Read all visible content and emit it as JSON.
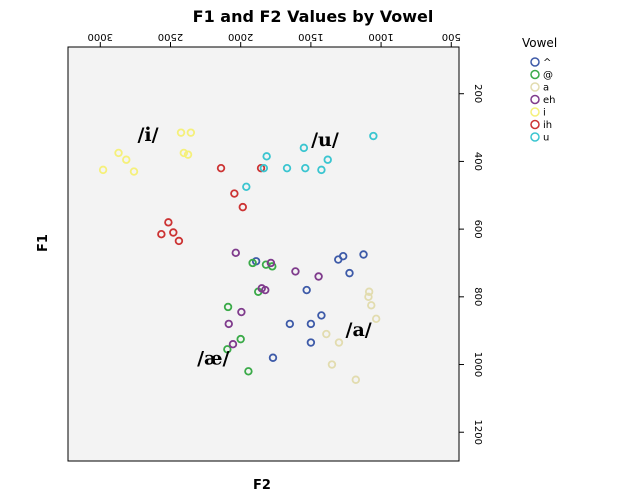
{
  "chart_data": {
    "type": "scatter",
    "title": "F1 and F2 Values by Vowel",
    "xlabel": "F2",
    "ylabel": "F1",
    "x_reversed": true,
    "y_reversed": true,
    "xlim": [
      3230,
      445
    ],
    "ylim": [
      62,
      1285
    ],
    "x_ticks": [
      3000,
      2500,
      2000,
      1500,
      1000,
      500
    ],
    "x_tick_labels": [
      "3000",
      "2500",
      "2000",
      "1500",
      "1000",
      "500"
    ],
    "y_ticks": [
      200,
      400,
      600,
      800,
      1000,
      1200
    ],
    "y_tick_labels": [
      "200",
      "400",
      "600",
      "800",
      "1000",
      "1200"
    ],
    "tick_labels_rotated": true,
    "legend": {
      "title": "Vowel",
      "position": "right"
    },
    "grid": false,
    "series": [
      {
        "name": "^",
        "color": "#3d5aa8",
        "points": [
          [
            1890,
            695
          ],
          [
            1530,
            780
          ],
          [
            1425,
            855
          ],
          [
            1270,
            680
          ],
          [
            1305,
            690
          ],
          [
            1225,
            730
          ],
          [
            1125,
            675
          ],
          [
            1650,
            880
          ],
          [
            1500,
            880
          ],
          [
            1500,
            935
          ],
          [
            1770,
            980
          ]
        ]
      },
      {
        "name": "@",
        "color": "#3aaa48",
        "points": [
          [
            1915,
            700
          ],
          [
            1820,
            705
          ],
          [
            1775,
            710
          ],
          [
            1875,
            785
          ],
          [
            2090,
            830
          ],
          [
            2000,
            925
          ],
          [
            2095,
            955
          ],
          [
            1945,
            1020
          ]
        ]
      },
      {
        "name": "a",
        "color": "#e2dcaf",
        "points": [
          [
            1085,
            785
          ],
          [
            1090,
            800
          ],
          [
            1070,
            825
          ],
          [
            1035,
            865
          ],
          [
            1390,
            910
          ],
          [
            1300,
            935
          ],
          [
            1350,
            1000
          ],
          [
            1180,
            1045
          ]
        ]
      },
      {
        "name": "eh",
        "color": "#7f3b8c",
        "points": [
          [
            2035,
            670
          ],
          [
            1785,
            700
          ],
          [
            1610,
            725
          ],
          [
            1995,
            845
          ],
          [
            2085,
            880
          ],
          [
            2055,
            940
          ],
          [
            1850,
            775
          ],
          [
            1825,
            780
          ],
          [
            1445,
            740
          ]
        ]
      },
      {
        "name": "i",
        "color": "#f5f07a",
        "points": [
          [
            2425,
            315
          ],
          [
            2355,
            315
          ],
          [
            2405,
            375
          ],
          [
            2375,
            380
          ],
          [
            2870,
            375
          ],
          [
            2815,
            395
          ],
          [
            2980,
            425
          ],
          [
            2760,
            430
          ]
        ]
      },
      {
        "name": "ih",
        "color": "#cc3333",
        "points": [
          [
            2140,
            420
          ],
          [
            2045,
            495
          ],
          [
            1985,
            535
          ],
          [
            1855,
            420
          ],
          [
            2515,
            580
          ],
          [
            2480,
            610
          ],
          [
            2565,
            615
          ],
          [
            2440,
            635
          ]
        ]
      },
      {
        "name": "u",
        "color": "#3ac5d0",
        "points": [
          [
            1550,
            360
          ],
          [
            1380,
            395
          ],
          [
            1425,
            425
          ],
          [
            1670,
            420
          ],
          [
            1540,
            420
          ],
          [
            1815,
            385
          ],
          [
            1835,
            420
          ],
          [
            1960,
            475
          ],
          [
            1055,
            325
          ]
        ]
      }
    ],
    "annotations": [
      {
        "text": "/i/",
        "x": 2660,
        "y": 340
      },
      {
        "text": "/u/",
        "x": 1400,
        "y": 355
      },
      {
        "text": "/a/",
        "x": 1160,
        "y": 915
      },
      {
        "text": "/æ/",
        "x": 2195,
        "y": 1000
      }
    ]
  }
}
